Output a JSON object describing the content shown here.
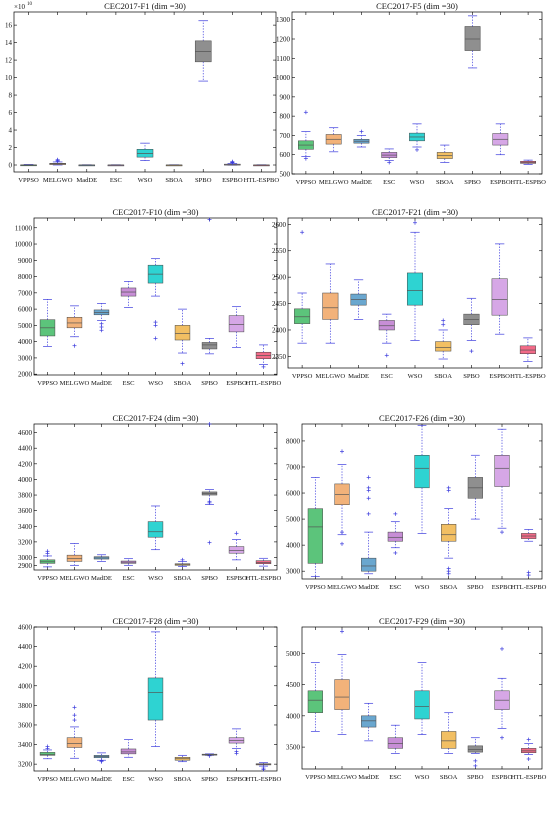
{
  "figure": {
    "categories": [
      "VPPSO",
      "MELGWO",
      "MadDE",
      "ESC",
      "WSO",
      "SBOA",
      "SPBO",
      "ESPBO",
      "HTL-ESPBO"
    ],
    "colors": [
      "#5cc47b",
      "#f2b27a",
      "#6aa7cf",
      "#c78ed6",
      "#2ed3d2",
      "#f2bf63",
      "#8f8f8f",
      "#d6a7e6",
      "#f26a88"
    ],
    "whisker_color": "#3b3bdd",
    "outlier_color": "#3b3bdd",
    "median_color": "#555555"
  },
  "chart_data": [
    {
      "type": "box",
      "title": "CEC2017-F1 (dim =30)",
      "multiplier_label": "×10",
      "multiplier_exp": "10",
      "ylim": [
        -0.8,
        17.5
      ],
      "yticks": [
        0,
        2,
        4,
        6,
        8,
        10,
        12,
        14,
        16
      ],
      "boxes": [
        {
          "name": "VPPSO",
          "lw": -0.05,
          "q1": -0.02,
          "med": 0.0,
          "q3": 0.02,
          "uw": 0.06,
          "outliers": []
        },
        {
          "name": "MELGWO",
          "lw": 0.0,
          "q1": 0.05,
          "med": 0.12,
          "q3": 0.2,
          "uw": 0.35,
          "outliers": [
            0.45,
            0.55,
            0.6
          ]
        },
        {
          "name": "MadDE",
          "lw": -0.03,
          "q1": -0.01,
          "med": 0.0,
          "q3": 0.01,
          "uw": 0.03,
          "outliers": []
        },
        {
          "name": "ESC",
          "lw": -0.03,
          "q1": -0.01,
          "med": 0.0,
          "q3": 0.01,
          "uw": 0.03,
          "outliers": []
        },
        {
          "name": "WSO",
          "lw": 0.5,
          "q1": 0.9,
          "med": 1.3,
          "q3": 1.8,
          "uw": 2.5,
          "outliers": []
        },
        {
          "name": "SBOA",
          "lw": -0.03,
          "q1": -0.01,
          "med": 0.0,
          "q3": 0.01,
          "uw": 0.03,
          "outliers": []
        },
        {
          "name": "SPBO",
          "lw": 9.6,
          "q1": 11.8,
          "med": 13.0,
          "q3": 14.2,
          "uw": 16.5,
          "outliers": []
        },
        {
          "name": "ESPBO",
          "lw": -0.02,
          "q1": 0.0,
          "med": 0.05,
          "q3": 0.1,
          "uw": 0.18,
          "outliers": [
            0.25,
            0.32,
            0.38
          ]
        },
        {
          "name": "HTL-ESPBO",
          "lw": -0.03,
          "q1": -0.01,
          "med": 0.0,
          "q3": 0.01,
          "uw": 0.03,
          "outliers": []
        }
      ]
    },
    {
      "type": "box",
      "title": "CEC2017-F5 (dim =30)",
      "ylim": [
        500,
        1340
      ],
      "yticks": [
        500,
        600,
        700,
        800,
        900,
        1000,
        1100,
        1200,
        1300
      ],
      "boxes": [
        {
          "name": "VPPSO",
          "lw": 590,
          "q1": 628,
          "med": 650,
          "q3": 672,
          "uw": 720,
          "outliers": [
            580,
            820
          ]
        },
        {
          "name": "MELGWO",
          "lw": 615,
          "q1": 655,
          "med": 680,
          "q3": 705,
          "uw": 740,
          "outliers": []
        },
        {
          "name": "MadDE",
          "lw": 640,
          "q1": 660,
          "med": 670,
          "q3": 680,
          "uw": 700,
          "outliers": [
            720
          ]
        },
        {
          "name": "ESC",
          "lw": 570,
          "q1": 585,
          "med": 598,
          "q3": 612,
          "uw": 630,
          "outliers": [
            560
          ]
        },
        {
          "name": "WSO",
          "lw": 640,
          "q1": 672,
          "med": 692,
          "q3": 712,
          "uw": 760,
          "outliers": [
            625
          ]
        },
        {
          "name": "SBOA",
          "lw": 560,
          "q1": 580,
          "med": 595,
          "q3": 612,
          "uw": 650,
          "outliers": []
        },
        {
          "name": "SPBO",
          "lw": 1050,
          "q1": 1140,
          "med": 1200,
          "q3": 1265,
          "uw": 1320,
          "outliers": []
        },
        {
          "name": "ESPBO",
          "lw": 600,
          "q1": 650,
          "med": 680,
          "q3": 710,
          "uw": 760,
          "outliers": []
        },
        {
          "name": "HTL-ESPBO",
          "lw": 550,
          "q1": 555,
          "med": 560,
          "q3": 566,
          "uw": 572,
          "outliers": []
        }
      ]
    },
    {
      "type": "box",
      "title": "CEC2017-F10 (dim =30)",
      "ylim": [
        1950,
        11600
      ],
      "yticks": [
        2000,
        3000,
        4000,
        5000,
        6000,
        7000,
        8000,
        9000,
        10000,
        11000
      ],
      "boxes": [
        {
          "name": "VPPSO",
          "lw": 3700,
          "q1": 4350,
          "med": 4850,
          "q3": 5350,
          "uw": 6600,
          "outliers": []
        },
        {
          "name": "MELGWO",
          "lw": 4300,
          "q1": 4850,
          "med": 5150,
          "q3": 5500,
          "uw": 6200,
          "outliers": [
            3750
          ]
        },
        {
          "name": "MadDE",
          "lw": 5300,
          "q1": 5650,
          "med": 5800,
          "q3": 5950,
          "uw": 6350,
          "outliers": [
            4700,
            4900,
            5100
          ]
        },
        {
          "name": "ESC",
          "lw": 6100,
          "q1": 6800,
          "med": 7050,
          "q3": 7300,
          "uw": 7700,
          "outliers": []
        },
        {
          "name": "WSO",
          "lw": 6800,
          "q1": 7600,
          "med": 8150,
          "q3": 8700,
          "uw": 9100,
          "outliers": [
            4200,
            5000,
            5200
          ]
        },
        {
          "name": "SBOA",
          "lw": 3300,
          "q1": 4100,
          "med": 4500,
          "q3": 5000,
          "uw": 6000,
          "outliers": [
            2650
          ]
        },
        {
          "name": "SPBO",
          "lw": 3250,
          "q1": 3550,
          "med": 3800,
          "q3": 3950,
          "uw": 4200,
          "outliers": [
            11500
          ]
        },
        {
          "name": "ESPBO",
          "lw": 3650,
          "q1": 4600,
          "med": 5050,
          "q3": 5600,
          "uw": 6150,
          "outliers": []
        },
        {
          "name": "HTL-ESPBO",
          "lw": 2600,
          "q1": 2950,
          "med": 3150,
          "q3": 3350,
          "uw": 3800,
          "outliers": [
            2450
          ]
        }
      ]
    },
    {
      "type": "box",
      "title": "CEC2017-F21 (dim =30)",
      "ylim": [
        2328,
        2612
      ],
      "yticks": [
        2350,
        2400,
        2450,
        2500,
        2550,
        2600
      ],
      "boxes": [
        {
          "name": "VPPSO",
          "lw": 2375,
          "q1": 2412,
          "med": 2425,
          "q3": 2440,
          "uw": 2470,
          "outliers": [
            2585
          ]
        },
        {
          "name": "MELGWO",
          "lw": 2375,
          "q1": 2420,
          "med": 2442,
          "q3": 2470,
          "uw": 2525,
          "outliers": []
        },
        {
          "name": "MadDE",
          "lw": 2420,
          "q1": 2447,
          "med": 2458,
          "q3": 2468,
          "uw": 2495,
          "outliers": []
        },
        {
          "name": "ESC",
          "lw": 2375,
          "q1": 2400,
          "med": 2408,
          "q3": 2418,
          "uw": 2430,
          "outliers": [
            2352
          ]
        },
        {
          "name": "WSO",
          "lw": 2380,
          "q1": 2447,
          "med": 2475,
          "q3": 2508,
          "uw": 2585,
          "outliers": [
            2603
          ]
        },
        {
          "name": "SBOA",
          "lw": 2345,
          "q1": 2360,
          "med": 2367,
          "q3": 2378,
          "uw": 2400,
          "outliers": [
            2410,
            2418
          ]
        },
        {
          "name": "SPBO",
          "lw": 2380,
          "q1": 2410,
          "med": 2420,
          "q3": 2430,
          "uw": 2460,
          "outliers": [
            2360
          ]
        },
        {
          "name": "ESPBO",
          "lw": 2392,
          "q1": 2428,
          "med": 2458,
          "q3": 2497,
          "uw": 2563,
          "outliers": []
        },
        {
          "name": "HTL-ESPBO",
          "lw": 2340,
          "q1": 2355,
          "med": 2362,
          "q3": 2370,
          "uw": 2385,
          "outliers": []
        }
      ]
    },
    {
      "type": "box",
      "title": "CEC2017-F24 (dim =30)",
      "ylim": [
        2840,
        4710
      ],
      "yticks": [
        2900,
        3000,
        3200,
        3400,
        3600,
        3800,
        4000,
        4200,
        4400,
        4600
      ],
      "ytick_labels": [
        "2900",
        "3000",
        "3200",
        "3400",
        "3600",
        "3800",
        "4000",
        "4200",
        "4400",
        "4600"
      ],
      "boxes": [
        {
          "name": "VPPSO",
          "lw": 2880,
          "q1": 2925,
          "med": 2945,
          "q3": 2970,
          "uw": 3020,
          "outliers": [
            3050,
            3080
          ]
        },
        {
          "name": "MELGWO",
          "lw": 2900,
          "q1": 2950,
          "med": 2985,
          "q3": 3030,
          "uw": 3180,
          "outliers": []
        },
        {
          "name": "MadDE",
          "lw": 2950,
          "q1": 2980,
          "med": 2995,
          "q3": 3010,
          "uw": 3035,
          "outliers": []
        },
        {
          "name": "ESC",
          "lw": 2900,
          "q1": 2925,
          "med": 2940,
          "q3": 2955,
          "uw": 2985,
          "outliers": []
        },
        {
          "name": "WSO",
          "lw": 3100,
          "q1": 3260,
          "med": 3330,
          "q3": 3460,
          "uw": 3660,
          "outliers": []
        },
        {
          "name": "SBOA",
          "lw": 2885,
          "q1": 2900,
          "med": 2910,
          "q3": 2920,
          "uw": 2950,
          "outliers": [
            2970
          ]
        },
        {
          "name": "SPBO",
          "lw": 3680,
          "q1": 3800,
          "med": 3820,
          "q3": 3840,
          "uw": 3870,
          "outliers": [
            3190,
            3700,
            3720,
            4710
          ]
        },
        {
          "name": "ESPBO",
          "lw": 2970,
          "q1": 3055,
          "med": 3090,
          "q3": 3140,
          "uw": 3230,
          "outliers": [
            3310
          ]
        },
        {
          "name": "HTL-ESPBO",
          "lw": 2890,
          "q1": 2920,
          "med": 2935,
          "q3": 2960,
          "uw": 2990,
          "outliers": []
        }
      ]
    },
    {
      "type": "box",
      "title": "CEC2017-F26 (dim =30)",
      "ylim": [
        2700,
        8650
      ],
      "yticks": [
        3000,
        4000,
        5000,
        6000,
        7000,
        8000
      ],
      "boxes": [
        {
          "name": "VPPSO",
          "lw": 2800,
          "q1": 3300,
          "med": 4700,
          "q3": 5400,
          "uw": 6600,
          "outliers": []
        },
        {
          "name": "MELGWO",
          "lw": 4400,
          "q1": 5550,
          "med": 5950,
          "q3": 6350,
          "uw": 7100,
          "outliers": [
            4050,
            4500,
            7600
          ]
        },
        {
          "name": "MadDE",
          "lw": 2900,
          "q1": 3000,
          "med": 3200,
          "q3": 3500,
          "uw": 4500,
          "outliers": [
            5200,
            5800,
            6100,
            6200,
            6600
          ]
        },
        {
          "name": "ESC",
          "lw": 3900,
          "q1": 4150,
          "med": 4300,
          "q3": 4500,
          "uw": 4900,
          "outliers": [
            3700,
            5200
          ]
        },
        {
          "name": "WSO",
          "lw": 4450,
          "q1": 6200,
          "med": 6950,
          "q3": 7450,
          "uw": 8600,
          "outliers": []
        },
        {
          "name": "SBOA",
          "lw": 3500,
          "q1": 4150,
          "med": 4400,
          "q3": 4800,
          "uw": 5400,
          "outliers": [
            2900,
            3000,
            3100,
            6100,
            6200
          ]
        },
        {
          "name": "SPBO",
          "lw": 5000,
          "q1": 5800,
          "med": 6200,
          "q3": 6600,
          "uw": 7450,
          "outliers": []
        },
        {
          "name": "ESPBO",
          "lw": 4650,
          "q1": 6250,
          "med": 6950,
          "q3": 7450,
          "uw": 8450,
          "outliers": [
            4500
          ]
        },
        {
          "name": "HTL-ESPBO",
          "lw": 4150,
          "q1": 4250,
          "med": 4350,
          "q3": 4450,
          "uw": 4600,
          "outliers": [
            2850,
            2950
          ]
        }
      ]
    },
    {
      "type": "box",
      "title": "CEC2017-F28 (dim =30)",
      "ylim": [
        3130,
        4600
      ],
      "yticks": [
        3200,
        3400,
        3600,
        3800,
        4000,
        4200,
        4400,
        4600
      ],
      "boxes": [
        {
          "name": "VPPSO",
          "lw": 3255,
          "q1": 3290,
          "med": 3300,
          "q3": 3320,
          "uw": 3345,
          "outliers": [
            3360,
            3380
          ]
        },
        {
          "name": "MELGWO",
          "lw": 3260,
          "q1": 3370,
          "med": 3410,
          "q3": 3470,
          "uw": 3580,
          "outliers": [
            3650,
            3700,
            3780
          ]
        },
        {
          "name": "MadDE",
          "lw": 3240,
          "q1": 3265,
          "med": 3278,
          "q3": 3290,
          "uw": 3315,
          "outliers": [
            3225,
            3235
          ]
        },
        {
          "name": "ESC",
          "lw": 3270,
          "q1": 3305,
          "med": 3325,
          "q3": 3355,
          "uw": 3450,
          "outliers": []
        },
        {
          "name": "WSO",
          "lw": 3380,
          "q1": 3650,
          "med": 3930,
          "q3": 4080,
          "uw": 4550,
          "outliers": []
        },
        {
          "name": "SBOA",
          "lw": 3225,
          "q1": 3240,
          "med": 3255,
          "q3": 3270,
          "uw": 3290,
          "outliers": []
        },
        {
          "name": "SPBO",
          "lw": 3290,
          "q1": 3295,
          "med": 3298,
          "q3": 3302,
          "uw": 3305,
          "outliers": [
            3285
          ]
        },
        {
          "name": "ESPBO",
          "lw": 3360,
          "q1": 3415,
          "med": 3440,
          "q3": 3470,
          "uw": 3560,
          "outliers": [
            3310,
            3330
          ]
        },
        {
          "name": "HTL-ESPBO",
          "lw": 3180,
          "q1": 3192,
          "med": 3198,
          "q3": 3204,
          "uw": 3215,
          "outliers": [
            3145,
            3160
          ]
        }
      ]
    },
    {
      "type": "box",
      "title": "CEC2017-F29 (dim =30)",
      "ylim": [
        3150,
        5420
      ],
      "yticks": [
        3500,
        4000,
        4500,
        5000
      ],
      "boxes": [
        {
          "name": "VPPSO",
          "lw": 3750,
          "q1": 4050,
          "med": 4250,
          "q3": 4400,
          "uw": 4850,
          "outliers": []
        },
        {
          "name": "MELGWO",
          "lw": 3700,
          "q1": 4100,
          "med": 4300,
          "q3": 4580,
          "uw": 4980,
          "outliers": [
            5350
          ]
        },
        {
          "name": "MadDE",
          "lw": 3600,
          "q1": 3820,
          "med": 3920,
          "q3": 4000,
          "uw": 4200,
          "outliers": []
        },
        {
          "name": "ESC",
          "lw": 3400,
          "q1": 3480,
          "med": 3560,
          "q3": 3650,
          "uw": 3850,
          "outliers": []
        },
        {
          "name": "WSO",
          "lw": 3700,
          "q1": 3950,
          "med": 4150,
          "q3": 4400,
          "uw": 4850,
          "outliers": []
        },
        {
          "name": "SBOA",
          "lw": 3400,
          "q1": 3480,
          "med": 3600,
          "q3": 3750,
          "uw": 4050,
          "outliers": []
        },
        {
          "name": "SPBO",
          "lw": 3400,
          "q1": 3420,
          "med": 3460,
          "q3": 3520,
          "uw": 3650,
          "outliers": [
            3200,
            3280
          ]
        },
        {
          "name": "ESPBO",
          "lw": 3800,
          "q1": 4100,
          "med": 4250,
          "q3": 4400,
          "uw": 4600,
          "outliers": [
            3650,
            5070
          ]
        },
        {
          "name": "HTL-ESPBO",
          "lw": 3380,
          "q1": 3410,
          "med": 3440,
          "q3": 3480,
          "uw": 3560,
          "outliers": [
            3310,
            3620
          ]
        }
      ]
    }
  ]
}
